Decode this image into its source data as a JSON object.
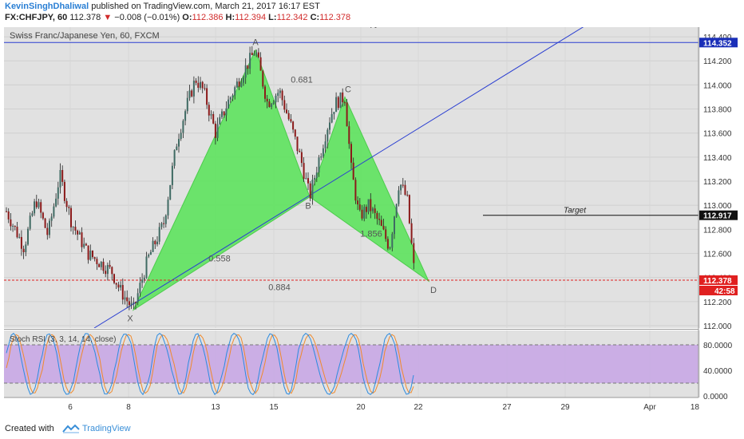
{
  "header": {
    "author": "KevinSinghDhaliwal",
    "published_text": "published on TradingView.com, March 21, 2017 16:17 EST",
    "symbol": "FX:CHFJPY, 60",
    "last_price": "112.378",
    "change_arrow": "▼",
    "change": "−0.008 (−0.01%)",
    "open_label": "O:",
    "open": "112.386",
    "high_label": "H:",
    "high": "112.394",
    "low_label": "L:",
    "low": "112.342",
    "close_label": "C:",
    "close": "112.378"
  },
  "pane_title": "Swiss Franc/Japanese Yen, 60, FXCM",
  "footer": {
    "created_with": "Created with",
    "brand": "TradingView"
  },
  "colors": {
    "pattern_fill": "#5ee35e",
    "trendline": "#2b3fd1",
    "price_line": "#e02020",
    "stoch_band": "#c9a9e6",
    "candle_up": "#3f6a63",
    "candle_down": "#8b1a1a",
    "badge_blue": "#1a2fb8"
  },
  "chart_data": {
    "type": "candlestick",
    "symbol": "CHFJPY",
    "interval": "60",
    "x_ticks": [
      "6",
      "8",
      "13",
      "15",
      "20",
      "22",
      "27",
      "29",
      "Apr",
      "18"
    ],
    "y_ticks": [
      "114.400",
      "114.200",
      "114.000",
      "113.800",
      "113.600",
      "113.400",
      "113.200",
      "113.000",
      "112.800",
      "112.600",
      "112.400",
      "112.200",
      "112.000"
    ],
    "ylim": [
      111.98,
      114.48
    ],
    "harmonic_pattern": {
      "points": [
        {
          "label": "X",
          "value": 112.13
        },
        {
          "label": "A",
          "value": 114.29
        },
        {
          "label": "B",
          "value": 113.07
        },
        {
          "label": "C",
          "value": 113.9
        },
        {
          "label": "D",
          "value": 112.37
        }
      ],
      "ratios": [
        {
          "label": "0.681"
        },
        {
          "label": "0.558"
        },
        {
          "label": "1.856"
        },
        {
          "label": "0.884"
        }
      ]
    },
    "price_labels": [
      {
        "label": "114.352",
        "value": 114.352
      },
      {
        "label": "112.917",
        "value": 112.917
      },
      {
        "label": "112.378",
        "value": 112.378
      }
    ],
    "countdown": "42:58",
    "target_label": "Target",
    "partial_top_text": "Spyha",
    "indicator": {
      "name": "Stoch RSI (3, 3, 14, 14, close)",
      "y_ticks": [
        "80.0000",
        "40.0000",
        "0.0000"
      ],
      "band": [
        20,
        80
      ]
    }
  }
}
